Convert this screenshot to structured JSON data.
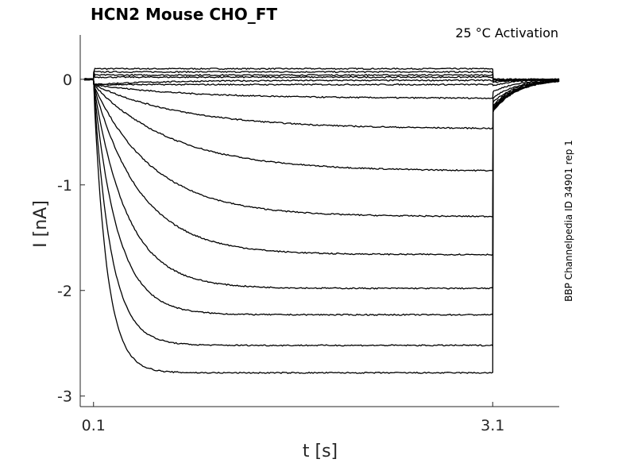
{
  "chart_data": {
    "type": "line",
    "title": "HCN2  Mouse  CHO_FT",
    "subtitle": "25 °C  Activation",
    "side_note": "BBP Channelpedia ID 34901 rep 1",
    "xlabel": "t [s]",
    "ylabel": "I [nA]",
    "xlim": [
      0.0,
      3.6
    ],
    "ylim": [
      -3.1,
      0.42
    ],
    "xticks": [
      0.1,
      3.1
    ],
    "xtick_labels": [
      "0.1",
      "3.1"
    ],
    "yticks": [
      0,
      -1,
      -2,
      -3
    ],
    "ytick_labels": [
      "0",
      "-1",
      "-2",
      "-3"
    ],
    "grid": false,
    "step_start": 0.1,
    "step_end": 3.1,
    "series": [
      {
        "steady": 0.1,
        "tau": 0.5,
        "tail": 0.0
      },
      {
        "steady": 0.07,
        "tau": 0.5,
        "tail": 0.0
      },
      {
        "steady": 0.04,
        "tau": 0.5,
        "tail": -0.01
      },
      {
        "steady": 0.02,
        "tau": 0.5,
        "tail": -0.02
      },
      {
        "steady": -0.01,
        "tau": 0.5,
        "tail": -0.03
      },
      {
        "steady": -0.05,
        "tau": 0.6,
        "tail": -0.06
      },
      {
        "steady": -0.18,
        "tau": 0.7,
        "tail": -0.12
      },
      {
        "steady": -0.47,
        "tau": 0.7,
        "tail": -0.18
      },
      {
        "steady": -0.87,
        "tau": 0.6,
        "tail": -0.22
      },
      {
        "steady": -1.3,
        "tau": 0.45,
        "tail": -0.25
      },
      {
        "steady": -1.66,
        "tau": 0.35,
        "tail": -0.27
      },
      {
        "steady": -1.98,
        "tau": 0.25,
        "tail": -0.28
      },
      {
        "steady": -2.23,
        "tau": 0.18,
        "tail": -0.29
      },
      {
        "steady": -2.52,
        "tau": 0.13,
        "tail": -0.3
      },
      {
        "steady": -2.78,
        "tau": 0.1,
        "tail": -0.31
      }
    ]
  }
}
